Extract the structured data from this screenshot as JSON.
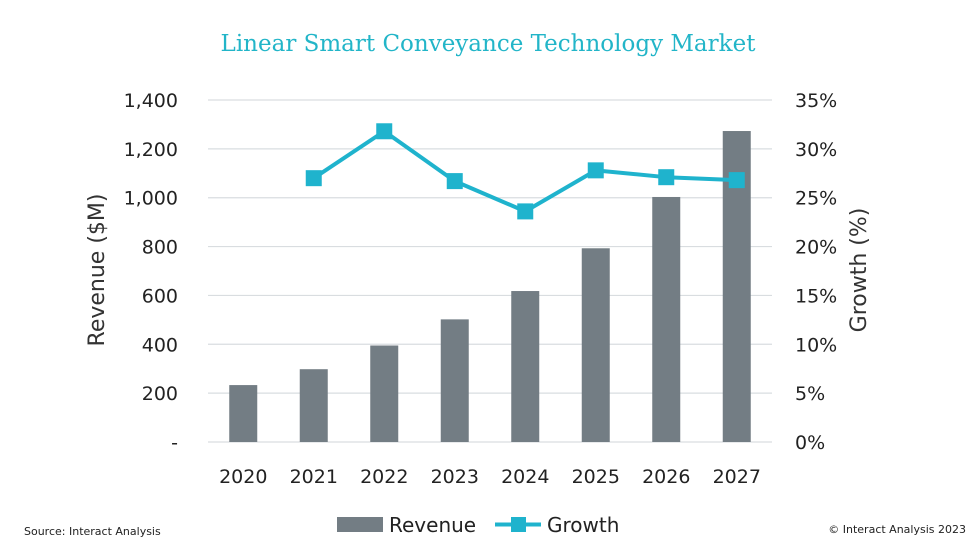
{
  "chart_data": {
    "type": "bar",
    "title": "Linear Smart Conveyance Technology Market",
    "categories": [
      "2020",
      "2021",
      "2022",
      "2023",
      "2024",
      "2025",
      "2026",
      "2027"
    ],
    "series": [
      {
        "name": "Revenue",
        "type": "bar",
        "axis": "left",
        "color": "#737d84",
        "values": [
          233,
          298,
          395,
          502,
          618,
          793,
          1003,
          1273
        ]
      },
      {
        "name": "Growth",
        "type": "line",
        "axis": "right",
        "color": "#1fb3cd",
        "marker": "square",
        "values": [
          null,
          27.0,
          31.8,
          26.7,
          23.6,
          27.8,
          27.1,
          26.8
        ]
      }
    ],
    "ylabel": "Revenue ($M)",
    "ylim": [
      0,
      1400
    ],
    "yticks": [
      "-",
      "200",
      "400",
      "600",
      "800",
      "1,000",
      "1,200",
      "1,400"
    ],
    "y2label": "Growth (%)",
    "y2lim": [
      0,
      35
    ],
    "y2ticks": [
      "0%",
      "5%",
      "10%",
      "15%",
      "20%",
      "25%",
      "30%",
      "35%"
    ],
    "grid": true,
    "legend": {
      "position": "bottom",
      "items": [
        "Revenue",
        "Growth"
      ]
    }
  },
  "footer": {
    "source": "Source: Interact Analysis",
    "copyright": "© Interact Analysis 2023"
  }
}
